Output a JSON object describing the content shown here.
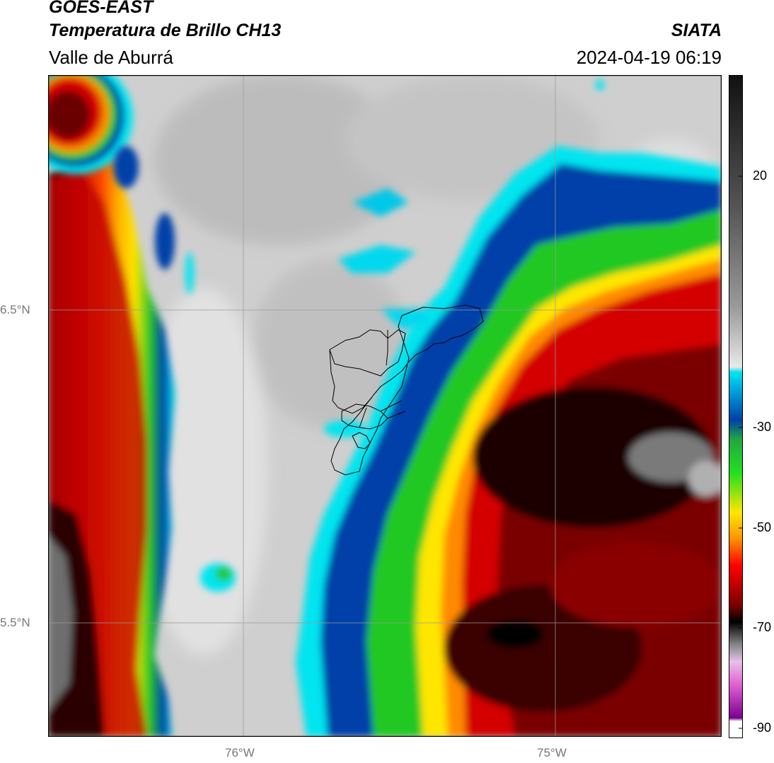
{
  "header": {
    "satellite": "GOES-EAST",
    "product": "Temperatura de Brillo CH13",
    "region": "Valle de Aburrá",
    "organization": "SIATA",
    "timestamp": "2024-04-19 06:19"
  },
  "map": {
    "lat_labels": [
      "6.5°N",
      "5.5°N"
    ],
    "lon_labels": [
      "76°W",
      "75°W"
    ],
    "colors": {
      "warm_gray": "#c8c8c8",
      "cyan": "#00e5f0",
      "blue": "#0040a8",
      "green": "#22c820",
      "yellow": "#ffe600",
      "orange": "#ff8a00",
      "red": "#d40000",
      "dark_red": "#3a0000",
      "black": "#000000",
      "boundary": "#000000"
    }
  },
  "colorbar": {
    "ticks": [
      "20",
      "-30",
      "-50",
      "-70",
      "-90"
    ]
  }
}
